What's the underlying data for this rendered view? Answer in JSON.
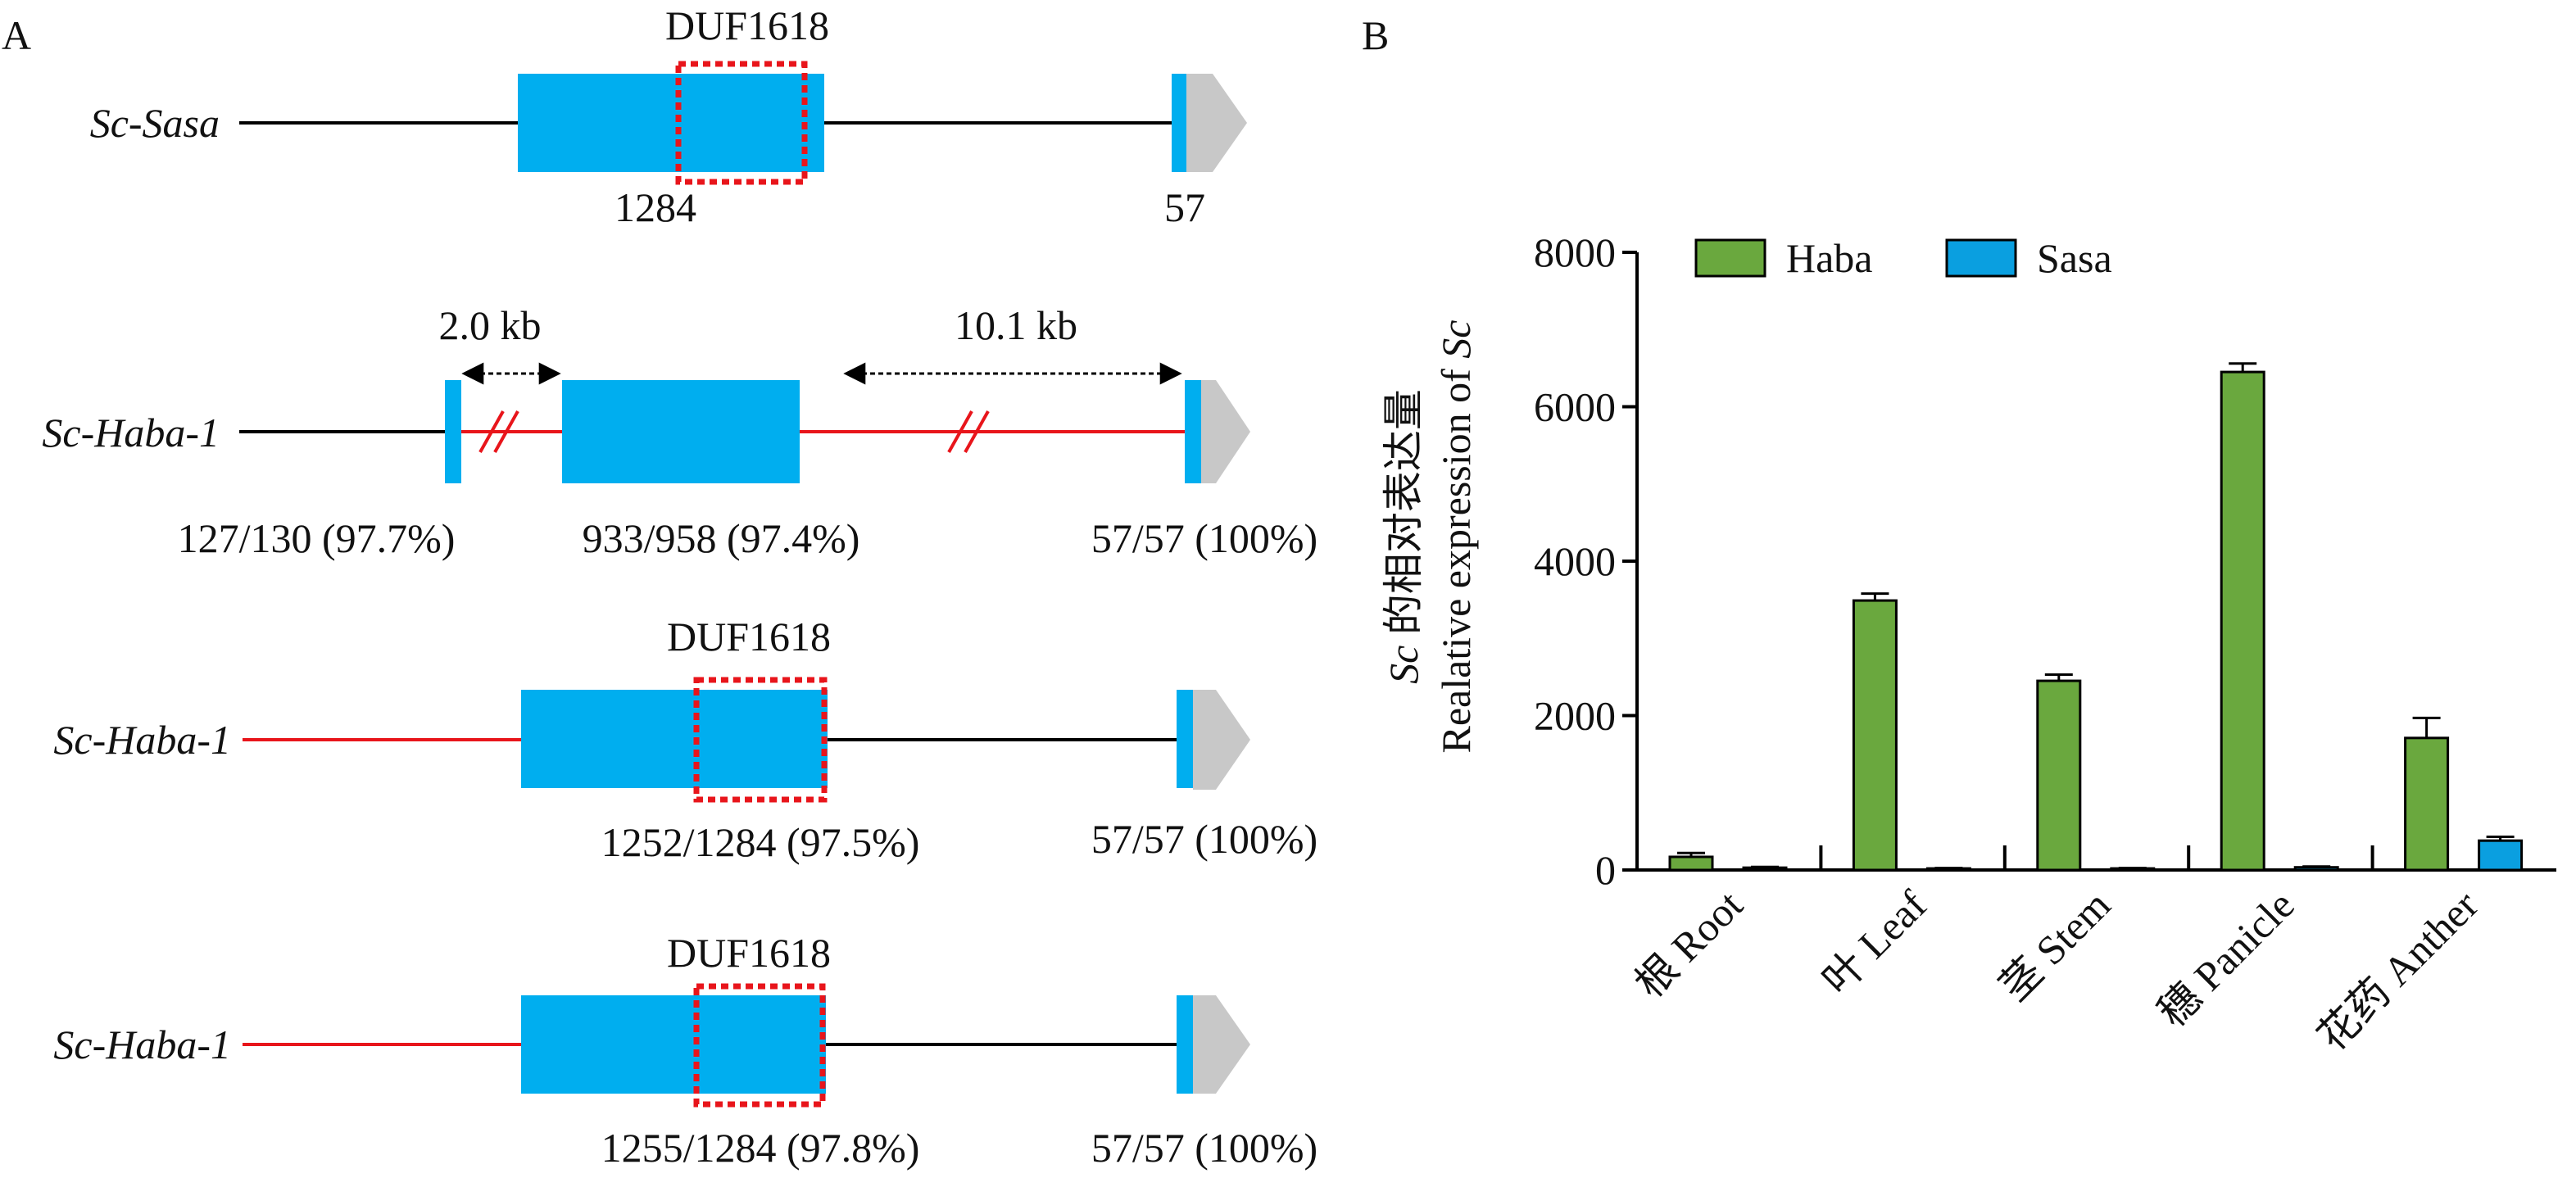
{
  "panel_a_label": "A",
  "panel_b_label": "B",
  "colors": {
    "exon": "#00aeef",
    "utr": "#c8c8c8",
    "intron_black": "#000000",
    "intron_red": "#e8151b",
    "domain_box": "#e8151b",
    "haba": "#6aa83e",
    "sasa": "#0a9fe0"
  },
  "gene_models": [
    {
      "name": "Sc-Sasa",
      "domain_label": "DUF1618",
      "exon_labels": [
        "1284",
        "57"
      ],
      "distance_labels": []
    },
    {
      "name": "Sc-Haba-1",
      "domain_label": "",
      "exon_labels": [
        "127/130 (97.7%)",
        "933/958 (97.4%)",
        "57/57 (100%)"
      ],
      "distance_labels": [
        "2.0 kb",
        "10.1 kb"
      ]
    },
    {
      "name": "Sc-Haba-1",
      "domain_label": "DUF1618",
      "exon_labels": [
        "1252/1284 (97.5%)",
        "57/57 (100%)"
      ],
      "distance_labels": []
    },
    {
      "name": "Sc-Haba-1",
      "domain_label": "DUF1618",
      "exon_labels": [
        "1255/1284 (97.8%)",
        "57/57 (100%)"
      ],
      "distance_labels": []
    }
  ],
  "chart_data": {
    "type": "bar",
    "title": "",
    "ylabel_line1": "Sc 的相对表达量",
    "ylabel_line1_italic": "Sc",
    "ylabel_line1_rest": " 的相对表达量",
    "ylabel_line2": "Realative expression of Sc",
    "ylabel_line2_rest": "Realative expression of ",
    "ylabel_line2_italic": "Sc",
    "ylim": [
      0,
      8000
    ],
    "yticks": [
      "0",
      "2000",
      "4000",
      "6000",
      "8000"
    ],
    "ytick_values": [
      0,
      2000,
      4000,
      6000,
      8000
    ],
    "categories": [
      "根 Root",
      "叶 Leaf",
      "茎 Stem",
      "穗 Panicle",
      "花药 Anther"
    ],
    "legend_position": "top-left",
    "series": [
      {
        "name": "Haba",
        "values": [
          170,
          3490,
          2450,
          6450,
          1710
        ],
        "errors": [
          50,
          90,
          80,
          110,
          260
        ]
      },
      {
        "name": "Sasa",
        "values": [
          30,
          20,
          20,
          35,
          380
        ],
        "errors": [
          10,
          5,
          5,
          10,
          50
        ]
      }
    ]
  }
}
